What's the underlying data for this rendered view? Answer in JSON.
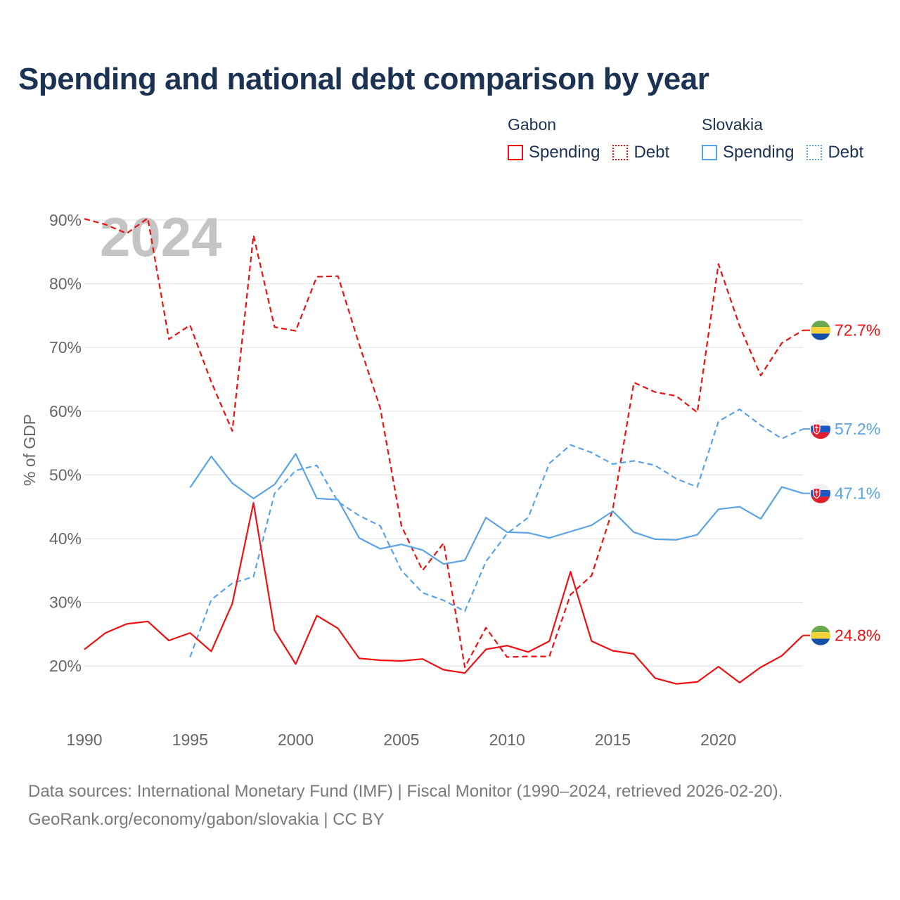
{
  "title": "Spending and national debt comparison by year",
  "legend": {
    "gabon": {
      "country": "Gabon",
      "spending": "Spending",
      "debt": "Debt",
      "color": "#ee1111"
    },
    "slovakia": {
      "country": "Slovakia",
      "spending": "Spending",
      "debt": "Debt",
      "color": "#5aa3e6"
    }
  },
  "footer": {
    "sources": "Data sources: International Monetary Fund (IMF) | Fiscal Monitor (1990–2024, retrieved 2026-02-20).",
    "credit": "GeoRank.org/economy/gabon/slovakia | CC BY"
  },
  "chart_data": {
    "type": "line",
    "title": "Spending and national debt comparison by year",
    "year_label": "2024",
    "ylabel": "% of GDP",
    "xlabel": "",
    "xlim": [
      1990,
      2024
    ],
    "ylim": [
      10,
      92
    ],
    "yticks": [
      20,
      30,
      40,
      50,
      60,
      70,
      80,
      90
    ],
    "ytick_labels": [
      "20%",
      "30%",
      "40%",
      "50%",
      "60%",
      "70%",
      "80%",
      "90%"
    ],
    "xticks": [
      1990,
      1995,
      2000,
      2005,
      2010,
      2015,
      2020
    ],
    "xtick_labels": [
      "1990",
      "1995",
      "2000",
      "2005",
      "2010",
      "2015",
      "2020"
    ],
    "grid": true,
    "series": [
      {
        "name": "Gabon Debt",
        "country": "Gabon",
        "metric": "Debt",
        "style": "dashed",
        "color": "#ee1111",
        "x": [
          1990,
          1991,
          1992,
          1993,
          1994,
          1995,
          1996,
          1997,
          1998,
          1999,
          2000,
          2001,
          2002,
          2003,
          2004,
          2005,
          2006,
          2007,
          2008,
          2009,
          2010,
          2011,
          2012,
          2013,
          2014,
          2015,
          2016,
          2017,
          2018,
          2019,
          2020,
          2021,
          2022,
          2023,
          2024
        ],
        "y": [
          90.2,
          89.3,
          87.9,
          90.3,
          71.3,
          73.5,
          64.6,
          56.9,
          87.6,
          73.2,
          72.6,
          81.1,
          81.2,
          70.5,
          60.5,
          42.0,
          35.0,
          39.3,
          19.8,
          26.0,
          21.4,
          21.5,
          21.5,
          31.2,
          34.2,
          44.6,
          64.5,
          63.0,
          62.4,
          59.8,
          83.1,
          73.4,
          65.6,
          70.7,
          72.7
        ],
        "end_label": "72.7%"
      },
      {
        "name": "Slovakia Debt",
        "country": "Slovakia",
        "metric": "Debt",
        "style": "dashed",
        "color": "#5aa3e6",
        "x": [
          1995,
          1996,
          1997,
          1998,
          1999,
          2000,
          2001,
          2002,
          2003,
          2004,
          2005,
          2006,
          2007,
          2008,
          2009,
          2010,
          2011,
          2012,
          2013,
          2014,
          2015,
          2016,
          2017,
          2018,
          2019,
          2020,
          2021,
          2022,
          2023,
          2024
        ],
        "y": [
          21.4,
          30.4,
          33.0,
          34.0,
          47.1,
          50.7,
          51.5,
          45.8,
          43.6,
          42.0,
          35.0,
          31.5,
          30.3,
          28.6,
          36.4,
          40.8,
          43.3,
          51.8,
          54.7,
          53.5,
          51.7,
          52.2,
          51.5,
          49.4,
          48.1,
          58.4,
          60.3,
          57.8,
          55.7,
          57.2
        ],
        "end_label": "57.2%"
      },
      {
        "name": "Slovakia Spending",
        "country": "Slovakia",
        "metric": "Spending",
        "style": "solid",
        "color": "#5aa3e6",
        "x": [
          1995,
          1996,
          1997,
          1998,
          1999,
          2000,
          2001,
          2002,
          2003,
          2004,
          2005,
          2006,
          2007,
          2008,
          2009,
          2010,
          2011,
          2012,
          2013,
          2014,
          2015,
          2016,
          2017,
          2018,
          2019,
          2020,
          2021,
          2022,
          2023,
          2024
        ],
        "y": [
          48.0,
          52.9,
          48.7,
          46.3,
          48.5,
          53.3,
          46.3,
          46.1,
          40.1,
          38.4,
          39.1,
          38.2,
          36.0,
          36.6,
          43.3,
          41.0,
          40.9,
          40.1,
          41.1,
          42.1,
          44.3,
          41.0,
          39.9,
          39.8,
          40.6,
          44.6,
          45.0,
          43.1,
          48.1,
          47.1
        ],
        "end_label": "47.1%"
      },
      {
        "name": "Gabon Spending",
        "country": "Gabon",
        "metric": "Spending",
        "style": "solid",
        "color": "#ee1111",
        "x": [
          1990,
          1991,
          1992,
          1993,
          1994,
          1995,
          1996,
          1997,
          1998,
          1999,
          2000,
          2001,
          2002,
          2003,
          2004,
          2005,
          2006,
          2007,
          2008,
          2009,
          2010,
          2011,
          2012,
          2013,
          2014,
          2015,
          2016,
          2017,
          2018,
          2019,
          2020,
          2021,
          2022,
          2023,
          2024
        ],
        "y": [
          22.6,
          25.2,
          26.6,
          27.0,
          24.0,
          25.2,
          22.3,
          29.8,
          45.6,
          25.6,
          20.3,
          27.9,
          25.9,
          21.2,
          20.9,
          20.8,
          21.1,
          19.4,
          18.9,
          22.6,
          23.2,
          22.2,
          23.9,
          34.8,
          23.9,
          22.4,
          21.9,
          18.1,
          17.2,
          17.5,
          19.9,
          17.4,
          19.8,
          21.6,
          24.8
        ],
        "end_label": "24.8%"
      }
    ]
  }
}
